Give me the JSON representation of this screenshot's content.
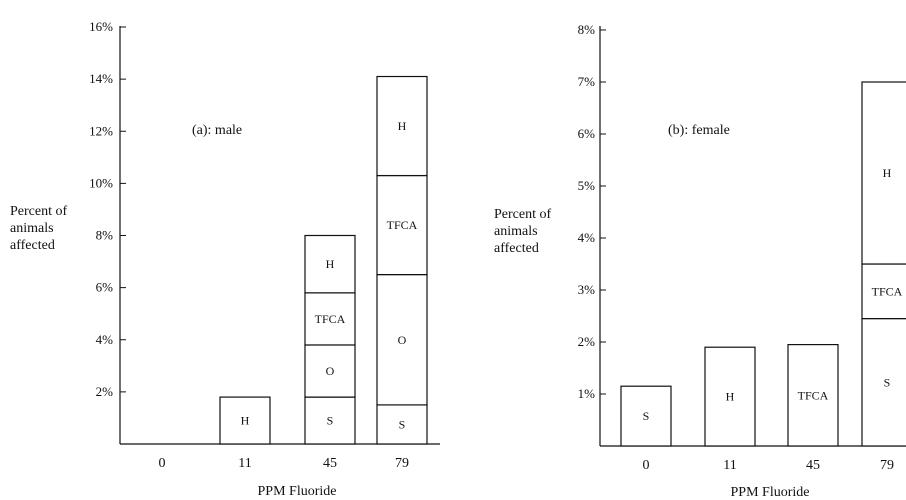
{
  "chart_data": [
    {
      "type": "bar",
      "stacked": true,
      "title": "(a): male",
      "xlabel": "PPM Fluoride",
      "ylabel": [
        "Percent of",
        "animals",
        "affected"
      ],
      "categories": [
        "0",
        "11",
        "45",
        "79"
      ],
      "ylim": [
        0,
        16
      ],
      "yticks": [
        "2%",
        "4%",
        "6%",
        "8%",
        "10%",
        "12%",
        "14%",
        "16%"
      ],
      "ytick_values": [
        2,
        4,
        6,
        8,
        10,
        12,
        14,
        16
      ],
      "bars": [
        {
          "category": "0",
          "segments": []
        },
        {
          "category": "11",
          "segments": [
            {
              "label": "H",
              "value": 1.8
            }
          ]
        },
        {
          "category": "45",
          "segments": [
            {
              "label": "S",
              "value": 1.8
            },
            {
              "label": "O",
              "value": 2.0
            },
            {
              "label": "TFCA",
              "value": 2.0
            },
            {
              "label": "H",
              "value": 2.2
            }
          ]
        },
        {
          "category": "79",
          "segments": [
            {
              "label": "S",
              "value": 1.5
            },
            {
              "label": "O",
              "value": 5.0
            },
            {
              "label": "TFCA",
              "value": 3.8
            },
            {
              "label": "H",
              "value": 3.8
            }
          ]
        }
      ]
    },
    {
      "type": "bar",
      "stacked": true,
      "title": "(b): female",
      "xlabel": "PPM Fluoride",
      "ylabel": [
        "Percent of",
        "animals",
        "affected"
      ],
      "categories": [
        "0",
        "11",
        "45",
        "79"
      ],
      "ylim": [
        0,
        8
      ],
      "yticks": [
        "1%",
        "2%",
        "3%",
        "4%",
        "5%",
        "6%",
        "7%",
        "8%"
      ],
      "ytick_values": [
        1,
        2,
        3,
        4,
        5,
        6,
        7,
        8
      ],
      "bars": [
        {
          "category": "0",
          "segments": [
            {
              "label": "S",
              "value": 1.15
            }
          ]
        },
        {
          "category": "11",
          "segments": [
            {
              "label": "H",
              "value": 1.9
            }
          ]
        },
        {
          "category": "45",
          "segments": [
            {
              "label": "TFCA",
              "value": 1.95
            }
          ]
        },
        {
          "category": "79",
          "segments": [
            {
              "label": "S",
              "value": 2.45
            },
            {
              "label": "TFCA",
              "value": 1.05
            },
            {
              "label": "H",
              "value": 3.5
            }
          ]
        }
      ]
    }
  ]
}
